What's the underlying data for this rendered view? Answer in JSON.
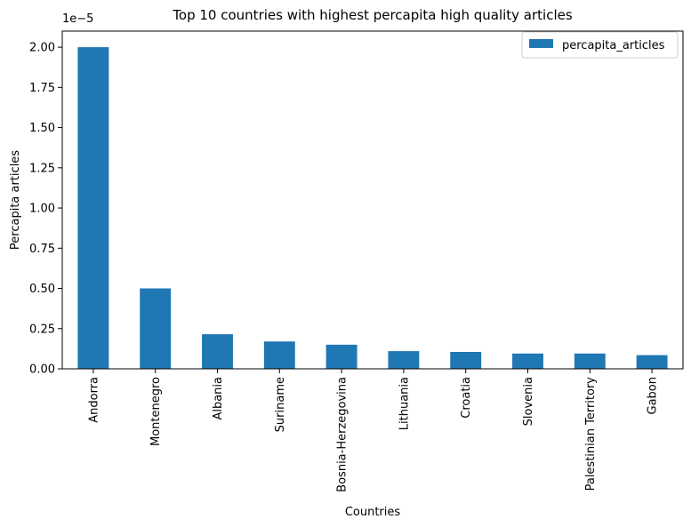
{
  "chart_data": {
    "type": "bar",
    "title": "Top 10 countries with highest percapita high quality articles",
    "xlabel": "Countries",
    "ylabel": "Percapita articles",
    "offset_label": "1e−5",
    "categories": [
      "Andorra",
      "Montenegro",
      "Albania",
      "Suriname",
      "Bosnia-Herzegovina",
      "Lithuania",
      "Croatia",
      "Slovenia",
      "Palestinian Territory",
      "Gabon"
    ],
    "series": [
      {
        "name": "percapita_articles",
        "values": [
          2e-05,
          5e-06,
          2.15e-06,
          1.7e-06,
          1.5e-06,
          1.1e-06,
          1.05e-06,
          9.5e-07,
          9.5e-07,
          8.5e-07
        ]
      }
    ],
    "ylim": [
      0,
      2.1e-05
    ],
    "yticks": [
      0,
      2.5e-06,
      5e-06,
      7.5e-06,
      1e-05,
      1.25e-05,
      1.5e-05,
      1.75e-05,
      2e-05
    ],
    "ytick_labels": [
      "0.00",
      "0.25",
      "0.50",
      "0.75",
      "1.00",
      "1.25",
      "1.50",
      "1.75",
      "2.00"
    ],
    "grid": false,
    "legend_position": "top-right",
    "bar_color": "#1f77b4"
  }
}
